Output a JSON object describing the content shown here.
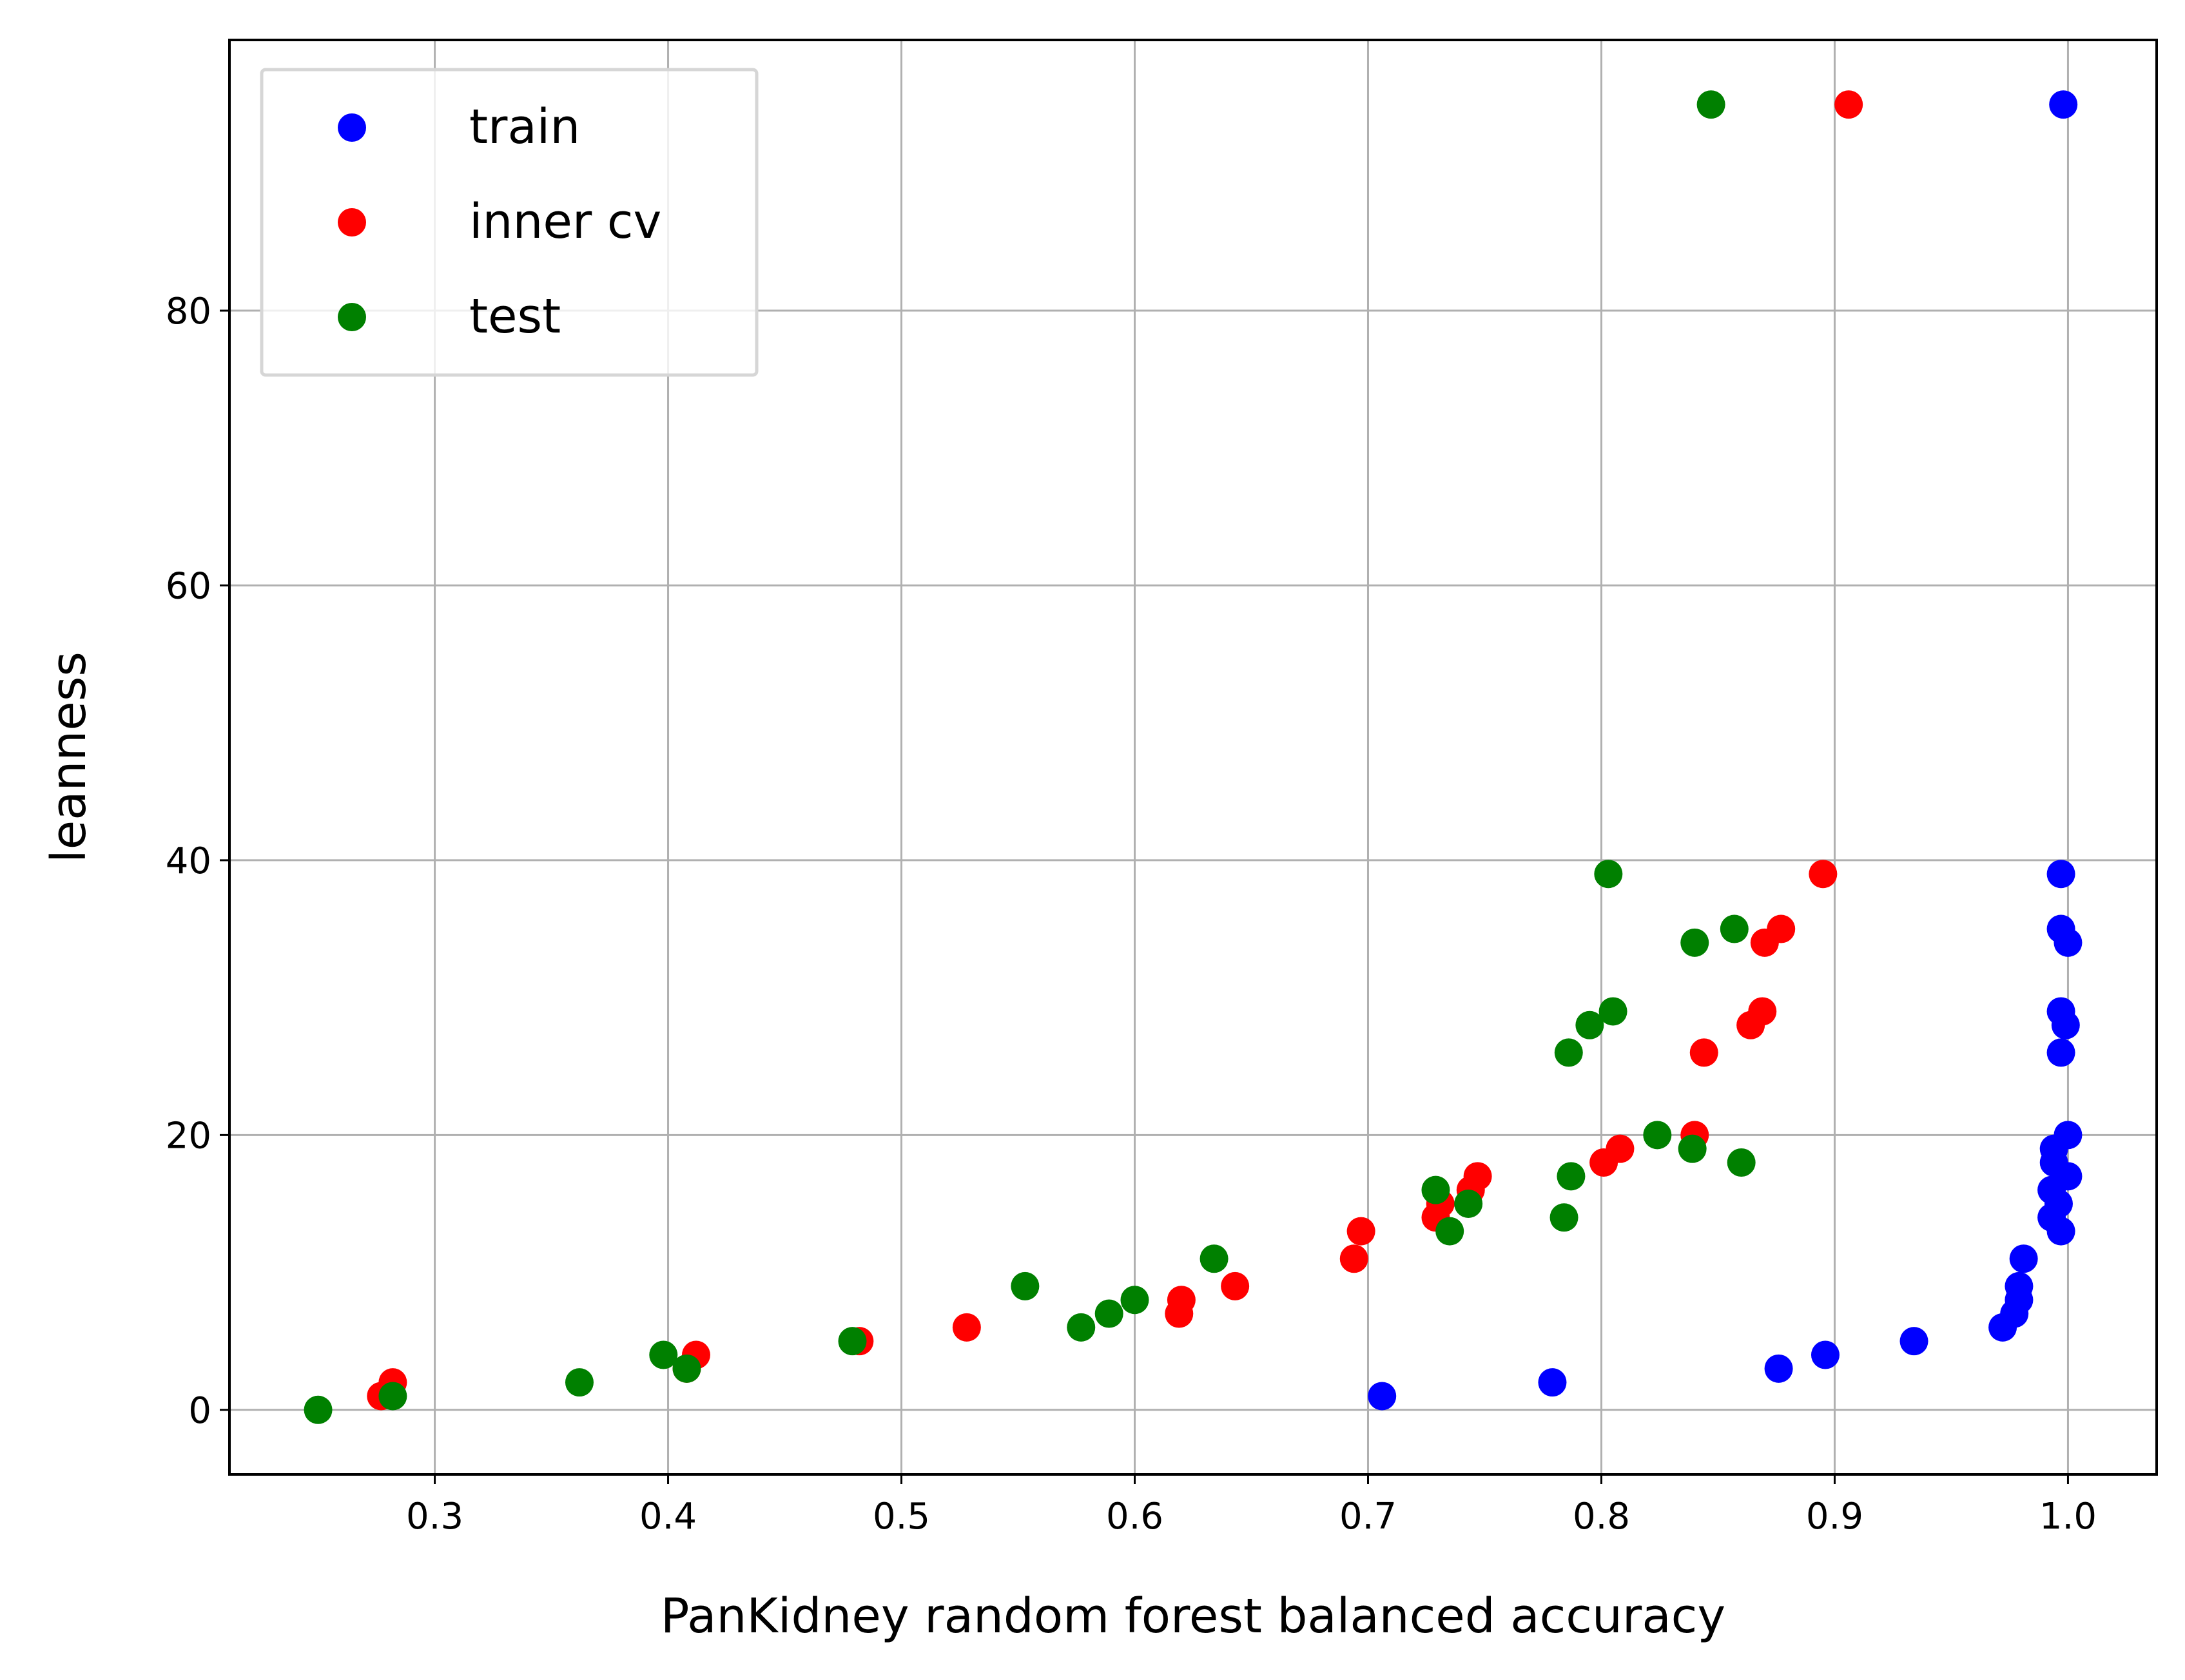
{
  "chart_data": {
    "type": "scatter",
    "title": "",
    "xlabel": "PanKidney random forest balanced accuracy",
    "ylabel": "leanness",
    "xlim": [
      0.212,
      1.038
    ],
    "ylim": [
      -4.7,
      99.7
    ],
    "xticks": [
      0.3,
      0.4,
      0.5,
      0.6,
      0.7,
      0.8,
      0.9,
      1.0
    ],
    "xtick_labels": [
      "0.3",
      "0.4",
      "0.5",
      "0.6",
      "0.7",
      "0.8",
      "0.9",
      "1.0"
    ],
    "yticks": [
      0,
      20,
      40,
      60,
      80
    ],
    "ytick_labels": [
      "0",
      "20",
      "40",
      "60",
      "80"
    ],
    "grid": true,
    "legend_position": "top-left",
    "series": [
      {
        "name": "train",
        "color": "#0000ff",
        "points": [
          [
            0.998,
            95
          ],
          [
            0.997,
            39
          ],
          [
            0.997,
            35
          ],
          [
            1.0,
            34
          ],
          [
            0.997,
            29
          ],
          [
            0.999,
            28
          ],
          [
            0.997,
            26
          ],
          [
            1.0,
            20
          ],
          [
            0.994,
            19
          ],
          [
            0.994,
            18
          ],
          [
            1.0,
            17
          ],
          [
            0.993,
            16
          ],
          [
            0.996,
            15
          ],
          [
            0.993,
            14
          ],
          [
            0.997,
            13
          ],
          [
            0.981,
            11
          ],
          [
            0.979,
            9
          ],
          [
            0.979,
            8
          ],
          [
            0.977,
            7
          ],
          [
            0.972,
            6
          ],
          [
            0.934,
            5
          ],
          [
            0.896,
            4
          ],
          [
            0.876,
            3
          ],
          [
            0.779,
            2
          ],
          [
            0.706,
            1
          ]
        ]
      },
      {
        "name": "inner cv",
        "color": "#ff0000",
        "points": [
          [
            0.906,
            95
          ],
          [
            0.895,
            39
          ],
          [
            0.877,
            35
          ],
          [
            0.87,
            34
          ],
          [
            0.869,
            29
          ],
          [
            0.864,
            28
          ],
          [
            0.844,
            26
          ],
          [
            0.84,
            20
          ],
          [
            0.808,
            19
          ],
          [
            0.801,
            18
          ],
          [
            0.747,
            17
          ],
          [
            0.744,
            16
          ],
          [
            0.731,
            15
          ],
          [
            0.729,
            14
          ],
          [
            0.697,
            13
          ],
          [
            0.694,
            11
          ],
          [
            0.643,
            9
          ],
          [
            0.62,
            8
          ],
          [
            0.619,
            7
          ],
          [
            0.528,
            6
          ],
          [
            0.482,
            5
          ],
          [
            0.412,
            4
          ],
          [
            0.408,
            3
          ],
          [
            0.282,
            2
          ],
          [
            0.277,
            1
          ]
        ]
      },
      {
        "name": "test",
        "color": "#008000",
        "points": [
          [
            0.847,
            95
          ],
          [
            0.803,
            39
          ],
          [
            0.857,
            35
          ],
          [
            0.84,
            34
          ],
          [
            0.805,
            29
          ],
          [
            0.795,
            28
          ],
          [
            0.786,
            26
          ],
          [
            0.824,
            20
          ],
          [
            0.839,
            19
          ],
          [
            0.86,
            18
          ],
          [
            0.787,
            17
          ],
          [
            0.729,
            16
          ],
          [
            0.743,
            15
          ],
          [
            0.784,
            14
          ],
          [
            0.735,
            13
          ],
          [
            0.634,
            11
          ],
          [
            0.553,
            9
          ],
          [
            0.6,
            8
          ],
          [
            0.589,
            7
          ],
          [
            0.577,
            6
          ],
          [
            0.479,
            5
          ],
          [
            0.398,
            4
          ],
          [
            0.408,
            3
          ],
          [
            0.362,
            2
          ],
          [
            0.282,
            1
          ],
          [
            0.25,
            0
          ]
        ]
      }
    ]
  }
}
